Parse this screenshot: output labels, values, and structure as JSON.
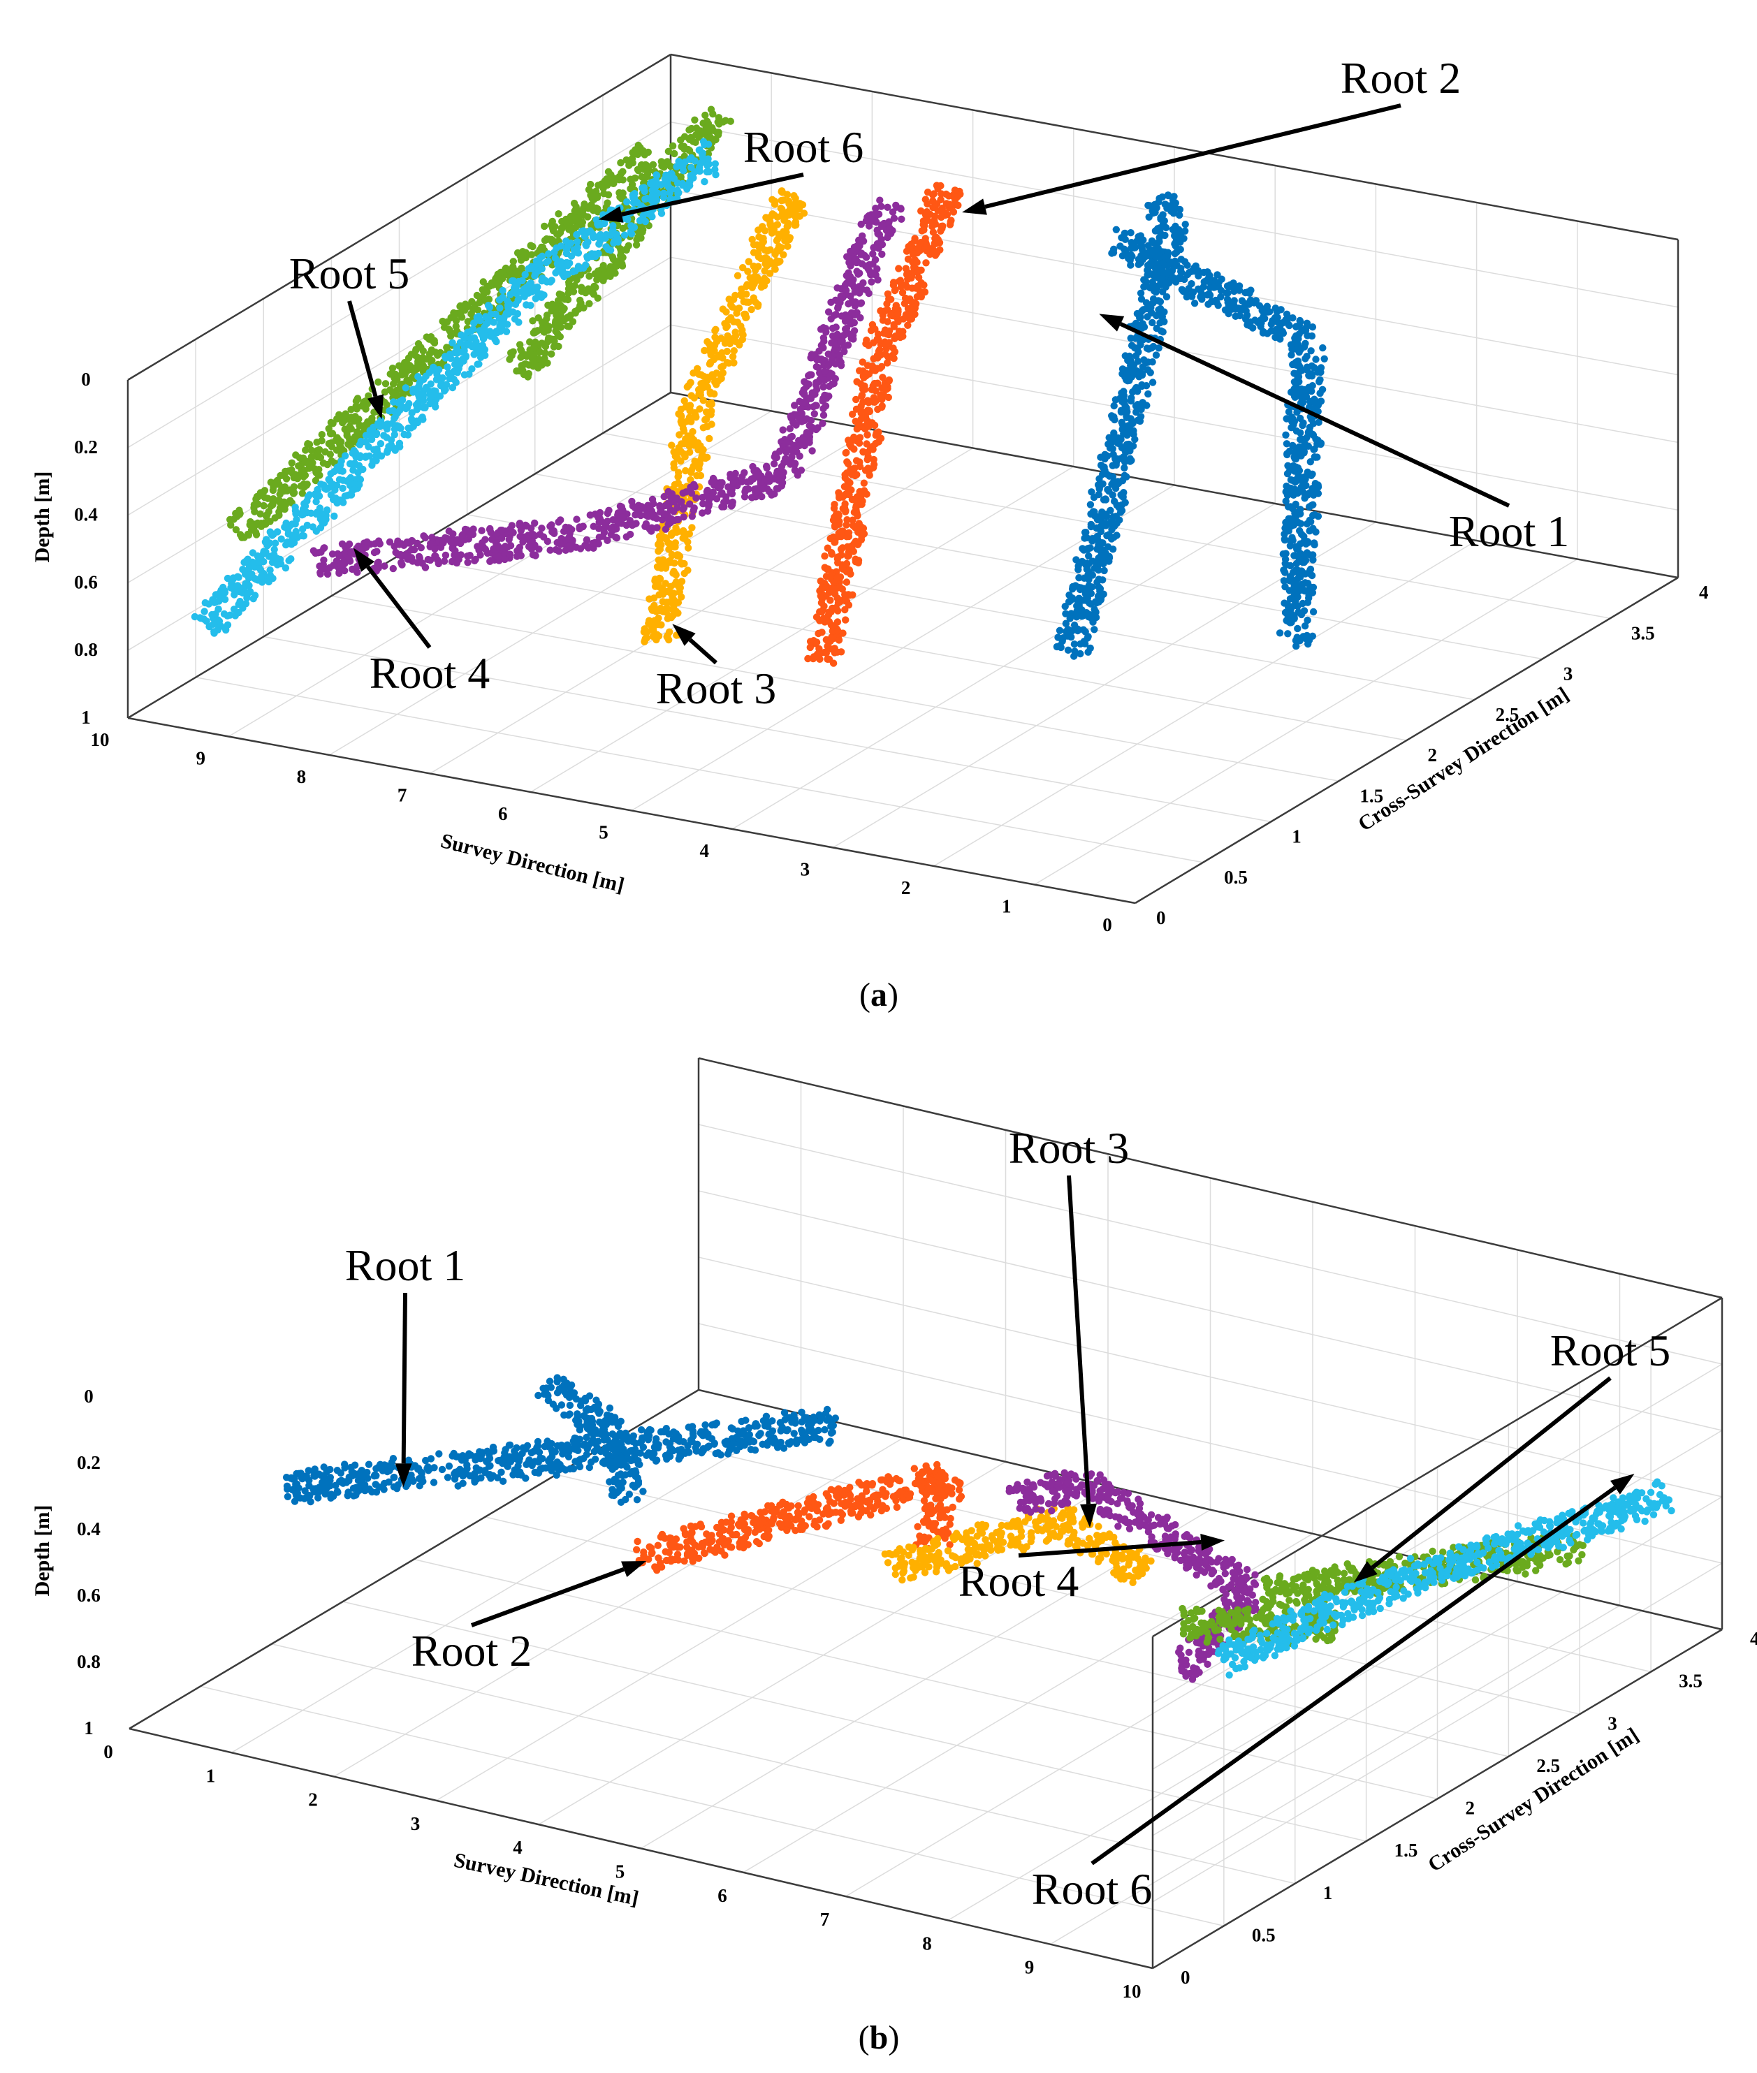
{
  "chart_data": [
    {
      "type": "scatter3d",
      "caption_letter": "a",
      "xlabel": "Survey Direction [m]",
      "ylabel": "Cross-Survey Direction [m]",
      "zlabel": "Depth [m]",
      "xlim": [
        0,
        10
      ],
      "ylim": [
        0,
        4
      ],
      "zlim": [
        0,
        1
      ],
      "xticks": [
        "0",
        "1",
        "2",
        "3",
        "4",
        "5",
        "6",
        "7",
        "8",
        "9",
        "10"
      ],
      "yticks": [
        "0",
        "0.5",
        "1",
        "1.5",
        "2",
        "2.5",
        "3",
        "3.5",
        "4"
      ],
      "zticks": [
        "0",
        "0.2",
        "0.4",
        "0.6",
        "0.8",
        "1"
      ],
      "grid": true,
      "series": [
        {
          "name": "Root 1",
          "color": "#0072BD",
          "segments": [
            [
              [
                1.7,
                0.8,
                0.55
              ],
              [
                4.5,
                3.6,
                0.12
              ],
              [
                5.0,
                3.9,
                0.12
              ]
            ],
            [
              [
                0.7,
                1.7,
                0.68
              ],
              [
                2.6,
                3.2,
                0.25
              ],
              [
                4.8,
                3.4,
                0.12
              ]
            ]
          ]
        },
        {
          "name": "Root 2",
          "color": "#FF5714",
          "segments": [
            [
              [
                3.5,
                0.3,
                0.55
              ],
              [
                5.5,
                2.2,
                0.2
              ],
              [
                6.7,
                3.6,
                0.12
              ]
            ]
          ]
        },
        {
          "name": "Root 3",
          "color": "#FFB000",
          "segments": [
            [
              [
                5.0,
                0.2,
                0.55
              ],
              [
                6.5,
                1.6,
                0.25
              ],
              [
                7.7,
                3.2,
                0.1
              ]
            ]
          ]
        },
        {
          "name": "Root 4",
          "color": "#8C2D9C",
          "segments": [
            [
              [
                8.4,
                0.2,
                0.5
              ],
              [
                6.3,
                0.6,
                0.4
              ],
              [
                5.1,
                1.2,
                0.3
              ],
              [
                6.9,
                3.3,
                0.1
              ]
            ]
          ]
        },
        {
          "name": "Root 5",
          "color": "#6AAA1E",
          "segments": [
            [
              [
                9.6,
                0.5,
                0.55
              ],
              [
                9.4,
                3.4,
                0.12
              ]
            ],
            [
              [
                9.5,
                2.5,
                0.55
              ],
              [
                9.4,
                3.9,
                0.12
              ]
            ]
          ]
        },
        {
          "name": "Root 6",
          "color": "#24BDEB",
          "segments": [
            [
              [
                9.5,
                0.2,
                0.75
              ],
              [
                9.0,
                2.2,
                0.2
              ],
              [
                8.9,
                3.5,
                0.12
              ]
            ]
          ]
        }
      ],
      "annotations": [
        {
          "text": "Root 1",
          "target": [
            4.4,
            3.0,
            0.22
          ]
        },
        {
          "text": "Root 2",
          "target": [
            6.3,
            3.4,
            0.12
          ]
        },
        {
          "text": "Root 3",
          "target": [
            5.0,
            0.3,
            0.52
          ]
        },
        {
          "text": "Root 4",
          "target": [
            8.3,
            0.4,
            0.5
          ]
        },
        {
          "text": "Root 5",
          "target": [
            9.5,
            1.5,
            0.45
          ]
        },
        {
          "text": "Root 6",
          "target": [
            9.1,
            2.8,
            0.15
          ]
        }
      ]
    },
    {
      "type": "scatter3d",
      "caption_letter": "b",
      "xlabel": "Survey Direction [m]",
      "ylabel": "Cross-Survey Direction [m]",
      "zlabel": "Depth [m]",
      "xlim": [
        0,
        10
      ],
      "ylim": [
        0,
        4
      ],
      "zlim": [
        0,
        1
      ],
      "xticks": [
        "0",
        "1",
        "2",
        "3",
        "4",
        "5",
        "6",
        "7",
        "8",
        "9",
        "10"
      ],
      "yticks": [
        "0",
        "0.5",
        "1",
        "1.5",
        "2",
        "2.5",
        "3",
        "3.5",
        "4"
      ],
      "zticks": [
        "0",
        "0.2",
        "0.4",
        "0.6",
        "0.8",
        "1"
      ],
      "grid": true,
      "series": [
        {
          "name": "Root 1",
          "color": "#0072BD",
          "segments": [
            [
              [
                1.4,
                0.1,
                0.2
              ],
              [
                3.0,
                0.7,
                0.15
              ],
              [
                4.8,
                1.5,
                0.12
              ]
            ],
            [
              [
                1.3,
                2.0,
                0.38
              ],
              [
                3.1,
                1.2,
                0.2
              ],
              [
                4.3,
                0.4,
                0.1
              ]
            ]
          ]
        },
        {
          "name": "Root 2",
          "color": "#FF5714",
          "segments": [
            [
              [
                3.7,
                0.9,
                0.45
              ],
              [
                5.9,
                1.5,
                0.2
              ],
              [
                7.0,
                0.6,
                0.1
              ]
            ]
          ]
        },
        {
          "name": "Root 3",
          "color": "#FFB000",
          "segments": [
            [
              [
                5.2,
                1.6,
                0.55
              ],
              [
                7.0,
                1.5,
                0.25
              ],
              [
                8.8,
                0.8,
                0.1
              ]
            ]
          ]
        },
        {
          "name": "Root 4",
          "color": "#8C2D9C",
          "segments": [
            [
              [
                5.3,
                2.4,
                0.55
              ],
              [
                6.5,
                2.0,
                0.3
              ],
              [
                9.6,
                1.0,
                0.15
              ],
              [
                10.0,
                0.2,
                0.15
              ]
            ]
          ]
        },
        {
          "name": "Root 5",
          "color": "#6AAA1E",
          "segments": [
            [
              [
                9.0,
                2.0,
                0.55
              ],
              [
                9.6,
                0.5,
                0.12
              ]
            ],
            [
              [
                9.6,
                3.3,
                0.6
              ],
              [
                9.8,
                0.9,
                0.12
              ]
            ]
          ]
        },
        {
          "name": "Root 6",
          "color": "#24BDEB",
          "segments": [
            [
              [
                9.6,
                3.9,
                0.6
              ],
              [
                9.9,
                1.8,
                0.3
              ],
              [
                10.0,
                0.5,
                0.2
              ]
            ]
          ]
        }
      ],
      "annotations": [
        {
          "text": "Root 1",
          "target": [
            2.4,
            0.2,
            0.15
          ]
        },
        {
          "text": "Root 2",
          "target": [
            3.8,
            0.9,
            0.45
          ]
        },
        {
          "text": "Root 3",
          "target": [
            7.3,
            1.5,
            0.25
          ]
        },
        {
          "text": "Root 4",
          "target": [
            8.2,
            1.8,
            0.3
          ]
        },
        {
          "text": "Root 5",
          "target": [
            9.6,
            1.7,
            0.3
          ]
        },
        {
          "text": "Root 6",
          "target": [
            9.7,
            3.6,
            0.45
          ]
        }
      ]
    }
  ]
}
